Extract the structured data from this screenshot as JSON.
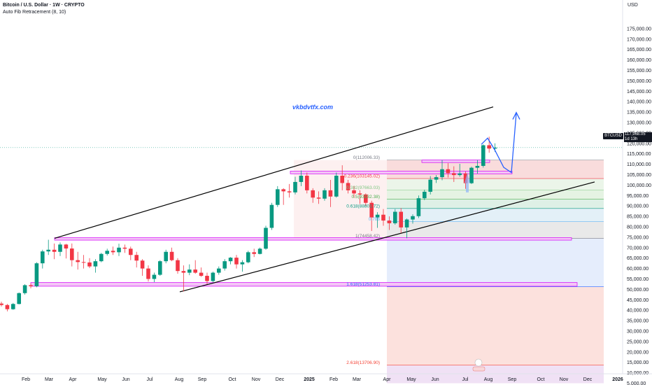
{
  "legend": {
    "title": "Bitcoin / U.S. Dollar · 1W · CRYPTO",
    "indicator": "Auto Fib Retracement (8, 10)"
  },
  "currency": "USD",
  "watermark": "vkbdvtfx.com",
  "price_tag": {
    "symbol": "BTCUSD",
    "price": "117,968.05",
    "countdown": "1d 13h"
  },
  "colors": {
    "bull": "#089981",
    "bear": "#f23645",
    "trendline": "#000000",
    "fib_zone": "#d500f9",
    "projection": "#2962ff"
  },
  "chart_data": {
    "type": "candlestick",
    "ylim": [
      5000,
      180000
    ],
    "yticks": [
      5000,
      10000,
      15000,
      20000,
      25000,
      30000,
      35000,
      40000,
      45000,
      50000,
      55000,
      60000,
      65000,
      70000,
      75000,
      80000,
      85000,
      90000,
      95000,
      100000,
      105000,
      110000,
      115000,
      120000,
      125000,
      130000,
      135000,
      140000,
      145000,
      150000,
      155000,
      160000,
      165000,
      170000,
      175000
    ],
    "ytick_labels": [
      "5,000.00",
      "10,000.00",
      "15,000.00",
      "20,000.00",
      "25,000.00",
      "30,000.00",
      "35,000.00",
      "40,000.00",
      "45,000.00",
      "50,000.00",
      "55,000.00",
      "60,000.00",
      "65,000.00",
      "70,000.00",
      "75,000.00",
      "80,000.00",
      "85,000.00",
      "90,000.00",
      "95,000.00",
      "100,000.00",
      "105,000.00",
      "110,000.00",
      "115,000.00",
      "120,000.00",
      "125,000.00",
      "130,000.00",
      "135,000.00",
      "140,000.00",
      "145,000.00",
      "150,000.00",
      "155,000.00",
      "160,000.00",
      "165,000.00",
      "170,000.00",
      "175,000.00"
    ],
    "xticks": [
      "Feb",
      "Mar",
      "Apr",
      "May",
      "Jun",
      "Jul",
      "Aug",
      "Sep",
      "Oct",
      "Nov",
      "Dec",
      "2025",
      "Feb",
      "Mar",
      "Apr",
      "May",
      "Jun",
      "Jul",
      "Aug",
      "Sep",
      "Oct",
      "Nov",
      "Dec",
      "2026"
    ],
    "candles": [
      [
        43200,
        44100,
        41800,
        42500
      ],
      [
        42500,
        43000,
        39500,
        40500
      ],
      [
        40500,
        43500,
        40200,
        43000
      ],
      [
        43000,
        48500,
        42800,
        48200
      ],
      [
        48200,
        52500,
        47500,
        52000
      ],
      [
        52000,
        52800,
        50500,
        51500
      ],
      [
        51500,
        63000,
        51000,
        62500
      ],
      [
        62500,
        69000,
        60000,
        68200
      ],
      [
        68200,
        73800,
        66500,
        69000
      ],
      [
        69000,
        72000,
        64500,
        68000
      ],
      [
        68000,
        72500,
        66000,
        71500
      ],
      [
        71500,
        71800,
        64800,
        69600
      ],
      [
        69600,
        72000,
        61000,
        64000
      ],
      [
        64000,
        68000,
        59500,
        63100
      ],
      [
        63100,
        66500,
        60000,
        62900
      ],
      [
        62900,
        65000,
        60200,
        61000
      ],
      [
        61000,
        64500,
        58000,
        63500
      ],
      [
        63500,
        67500,
        63000,
        67000
      ],
      [
        67000,
        69500,
        66200,
        68500
      ],
      [
        68500,
        70500,
        66500,
        67800
      ],
      [
        67800,
        71900,
        66000,
        70000
      ],
      [
        70000,
        71500,
        67500,
        69500
      ],
      [
        69500,
        70500,
        64000,
        66500
      ],
      [
        66500,
        68000,
        60500,
        63800
      ],
      [
        63800,
        64500,
        56500,
        60000
      ],
      [
        60000,
        61500,
        53800,
        55000
      ],
      [
        55000,
        58000,
        53500,
        57000
      ],
      [
        57000,
        64000,
        56500,
        63500
      ],
      [
        63500,
        69000,
        62500,
        68000
      ],
      [
        68000,
        70000,
        63500,
        64000
      ],
      [
        64000,
        65000,
        57500,
        58800
      ],
      [
        58800,
        61500,
        49000,
        58000
      ],
      [
        58000,
        62000,
        56800,
        59500
      ],
      [
        59500,
        64000,
        57500,
        58000
      ],
      [
        58000,
        60500,
        56000,
        56500
      ],
      [
        56500,
        58000,
        52500,
        54000
      ],
      [
        54000,
        58500,
        53500,
        58000
      ],
      [
        58000,
        61000,
        57000,
        60000
      ],
      [
        60000,
        64500,
        59000,
        63500
      ],
      [
        63500,
        65500,
        62000,
        65200
      ],
      [
        65200,
        66500,
        60000,
        62000
      ],
      [
        62000,
        64000,
        58500,
        63000
      ],
      [
        63000,
        68500,
        62500,
        67800
      ],
      [
        67800,
        69500,
        65500,
        67000
      ],
      [
        67000,
        70000,
        66800,
        69500
      ],
      [
        69500,
        80500,
        69000,
        79500
      ],
      [
        79500,
        91500,
        78500,
        90500
      ],
      [
        90500,
        99500,
        89500,
        98000
      ],
      [
        98000,
        98500,
        90500,
        97000
      ],
      [
        97000,
        100500,
        94000,
        96500
      ],
      [
        96500,
        104000,
        95500,
        101500
      ],
      [
        101500,
        107000,
        99500,
        104500
      ],
      [
        104500,
        106000,
        96000,
        97500
      ],
      [
        97500,
        98500,
        91500,
        94000
      ],
      [
        94000,
        97000,
        91000,
        93500
      ],
      [
        93500,
        98500,
        92500,
        97500
      ],
      [
        97500,
        102500,
        89500,
        94500
      ],
      [
        94500,
        106000,
        94000,
        104500
      ],
      [
        104500,
        109500,
        97500,
        101000
      ],
      [
        101000,
        102500,
        96000,
        97500
      ],
      [
        97500,
        99500,
        94000,
        96000
      ],
      [
        96000,
        97500,
        91000,
        95500
      ],
      [
        95500,
        96000,
        90000,
        91500
      ],
      [
        91500,
        92500,
        78000,
        84500
      ],
      [
        84500,
        87000,
        79500,
        85800
      ],
      [
        85800,
        88500,
        80500,
        83000
      ],
      [
        83000,
        85000,
        78500,
        81700
      ],
      [
        81700,
        88500,
        81000,
        87200
      ],
      [
        87200,
        89000,
        77000,
        79700
      ],
      [
        79700,
        84000,
        74500,
        83500
      ],
      [
        83500,
        86000,
        81500,
        85100
      ],
      [
        85100,
        95000,
        84200,
        93700
      ],
      [
        93700,
        97800,
        92800,
        96800
      ],
      [
        96800,
        104300,
        95500,
        102600
      ],
      [
        102600,
        104800,
        101000,
        103800
      ],
      [
        103800,
        112000,
        102300,
        107600
      ],
      [
        107600,
        110500,
        103600,
        105700
      ],
      [
        105700,
        109000,
        101500,
        104800
      ],
      [
        104800,
        110200,
        104000,
        105600
      ],
      [
        105600,
        106500,
        98200,
        100900
      ],
      [
        100900,
        108800,
        100500,
        108300
      ],
      [
        108300,
        112000,
        105500,
        109200
      ],
      [
        109200,
        119500,
        108400,
        119100
      ],
      [
        119100,
        123200,
        115500,
        117500
      ],
      [
        117500,
        120000,
        115900,
        117968
      ]
    ],
    "fib_levels": [
      {
        "label": "0(112006.33)",
        "value": 112006.33,
        "color": "#787b86"
      },
      {
        "label": "0.236(103145.02)",
        "value": 103145.02,
        "color": "#f23645"
      },
      {
        "label": "0.382(97663.03)",
        "value": 97663.03,
        "color": "#81c784"
      },
      {
        "label": "0.5(93232.38)",
        "value": 93232.38,
        "color": "#4caf50"
      },
      {
        "label": "0.618(88801.72)",
        "value": 88801.72,
        "color": "#089981"
      },
      {
        "label": "0.786",
        "value": 82494,
        "color": "#64b5f6"
      },
      {
        "label": "1(74458.42)",
        "value": 74458.42,
        "color": "#787b86"
      },
      {
        "label": "1.618(51253.81)",
        "value": 51253.81,
        "color": "#2962ff"
      },
      {
        "label": "2.618(13706.90)",
        "value": 13706.9,
        "color": "#f44336"
      }
    ]
  }
}
